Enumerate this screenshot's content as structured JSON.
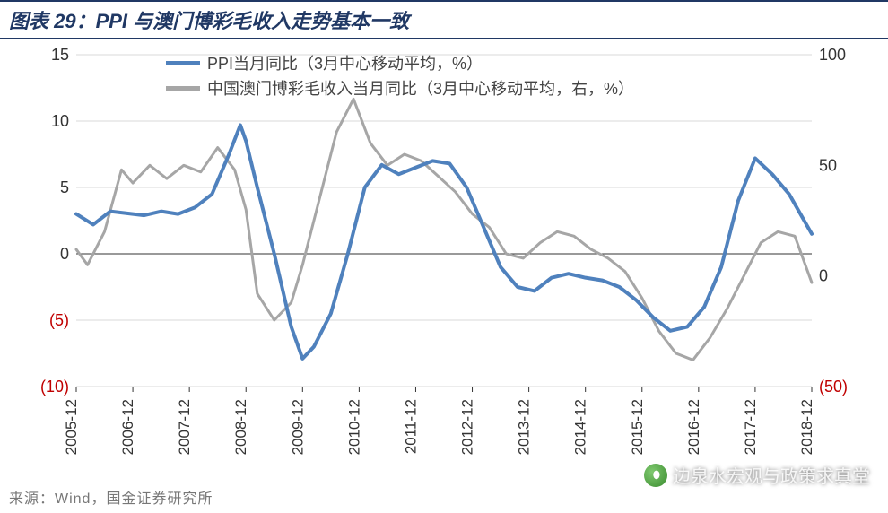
{
  "title": "图表 29：PPI 与澳门博彩毛收入走势基本一致",
  "source": "来源：Wind，国金证券研究所",
  "watermark": "边泉水宏观与政策求真堂",
  "chart": {
    "type": "line-dual-axis",
    "background_color": "#ffffff",
    "grid_color": "#d9d9d9",
    "axis_text_color": "#333333",
    "border_color": "#333333",
    "neg_label_color": "#c00000",
    "title_fontsize": 22,
    "label_fontsize": 18,
    "xtick_fontsize": 17,
    "line_width_main": 4,
    "line_width_secondary": 3,
    "x_categories": [
      "2005-12",
      "2006-12",
      "2007-12",
      "2008-12",
      "2009-12",
      "2010-12",
      "2011-12",
      "2012-12",
      "2013-12",
      "2014-12",
      "2015-12",
      "2016-12",
      "2017-12",
      "2018-12"
    ],
    "y_left": {
      "min": -10,
      "max": 15,
      "ticks": [
        -10,
        -5,
        0,
        5,
        10,
        15
      ],
      "label": ""
    },
    "y_right": {
      "min": -50,
      "max": 100,
      "ticks": [
        -50,
        0,
        50,
        100
      ],
      "label": ""
    },
    "legend": {
      "series1": "PPI当月同比（3月中心移动平均，%）",
      "series2": "中国澳门博彩毛收入当月同比（3月中心移动平均，右，%）"
    },
    "series": [
      {
        "name": "PPI当月同比",
        "axis": "left",
        "color": "#4f81bd",
        "x": [
          0,
          0.3,
          0.6,
          1.0,
          1.2,
          1.5,
          1.8,
          2.1,
          2.4,
          2.7,
          2.9,
          3.0,
          3.2,
          3.5,
          3.8,
          4.0,
          4.2,
          4.5,
          4.8,
          5.1,
          5.4,
          5.7,
          6.0,
          6.3,
          6.6,
          6.9,
          7.2,
          7.5,
          7.8,
          8.1,
          8.4,
          8.7,
          9.0,
          9.3,
          9.6,
          9.9,
          10.2,
          10.5,
          10.8,
          11.1,
          11.4,
          11.7,
          12.0,
          12.3,
          12.6,
          13.0
        ],
        "y": [
          3.0,
          2.2,
          3.2,
          3.0,
          2.9,
          3.2,
          3.0,
          3.5,
          4.5,
          7.5,
          9.7,
          8.5,
          5.0,
          0.0,
          -5.5,
          -7.9,
          -7.0,
          -4.5,
          0.0,
          5.0,
          6.7,
          6.0,
          6.5,
          7.0,
          6.8,
          5.0,
          2.0,
          -1.0,
          -2.5,
          -2.8,
          -1.8,
          -1.5,
          -1.8,
          -2.0,
          -2.5,
          -3.5,
          -4.8,
          -5.8,
          -5.5,
          -4.0,
          -1.0,
          4.0,
          7.2,
          6.0,
          4.5,
          1.5
        ]
      },
      {
        "name": "澳门博彩毛收入",
        "axis": "right",
        "color": "#a6a6a6",
        "x": [
          0,
          0.2,
          0.5,
          0.8,
          1.0,
          1.3,
          1.6,
          1.9,
          2.2,
          2.5,
          2.8,
          3.0,
          3.2,
          3.5,
          3.8,
          4.0,
          4.3,
          4.6,
          4.9,
          5.2,
          5.5,
          5.8,
          6.1,
          6.4,
          6.7,
          7.0,
          7.3,
          7.6,
          7.9,
          8.2,
          8.5,
          8.8,
          9.1,
          9.4,
          9.7,
          10.0,
          10.3,
          10.6,
          10.9,
          11.2,
          11.5,
          11.8,
          12.1,
          12.4,
          12.7,
          13.0
        ],
        "y": [
          12,
          5,
          20,
          48,
          42,
          50,
          44,
          50,
          47,
          58,
          48,
          30,
          -8,
          -20,
          -12,
          5,
          35,
          65,
          80,
          60,
          50,
          55,
          52,
          45,
          38,
          28,
          22,
          10,
          8,
          15,
          20,
          18,
          12,
          8,
          2,
          -10,
          -25,
          -35,
          -38,
          -28,
          -15,
          0,
          15,
          20,
          18,
          -3
        ]
      }
    ]
  }
}
